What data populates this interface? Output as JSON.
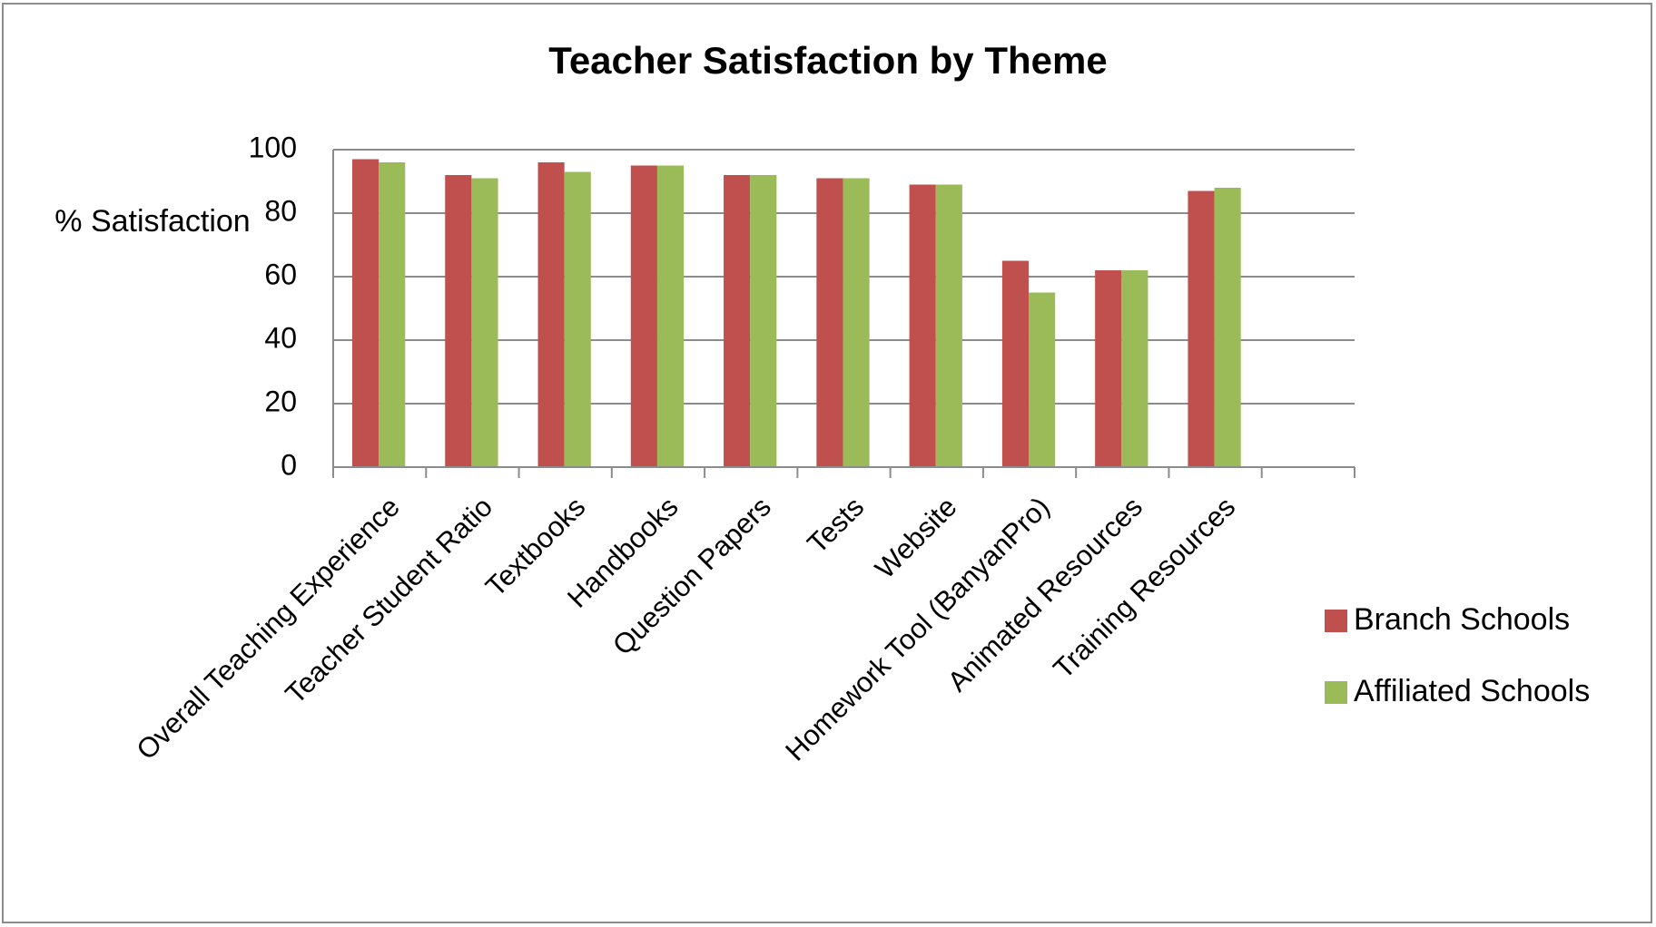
{
  "chart_data": {
    "type": "bar",
    "title": "Teacher Satisfaction by Theme",
    "y_label": "% Satisfaction",
    "categories": [
      "Overall Teaching Experience",
      "Teacher Student Ratio",
      "Textbooks",
      "Handbooks",
      "Question Papers",
      "Tests",
      "Website",
      "Homework Tool (BanyanPro)",
      "Animated Resources",
      "Training Resources",
      null
    ],
    "series": [
      {
        "name": "Branch Schools",
        "color": "#c0504d",
        "values": [
          97,
          92,
          96,
          95,
          92,
          91,
          89,
          65,
          62,
          87,
          null
        ]
      },
      {
        "name": "Affiliated Schools",
        "color": "#9bbb59",
        "values": [
          96,
          91,
          93,
          95,
          92,
          91,
          89,
          55,
          62,
          88,
          null
        ]
      }
    ],
    "ylim": [
      0,
      100
    ],
    "yticks": [
      0,
      20,
      40,
      60,
      80,
      100
    ],
    "grid": true,
    "legend": "right"
  }
}
